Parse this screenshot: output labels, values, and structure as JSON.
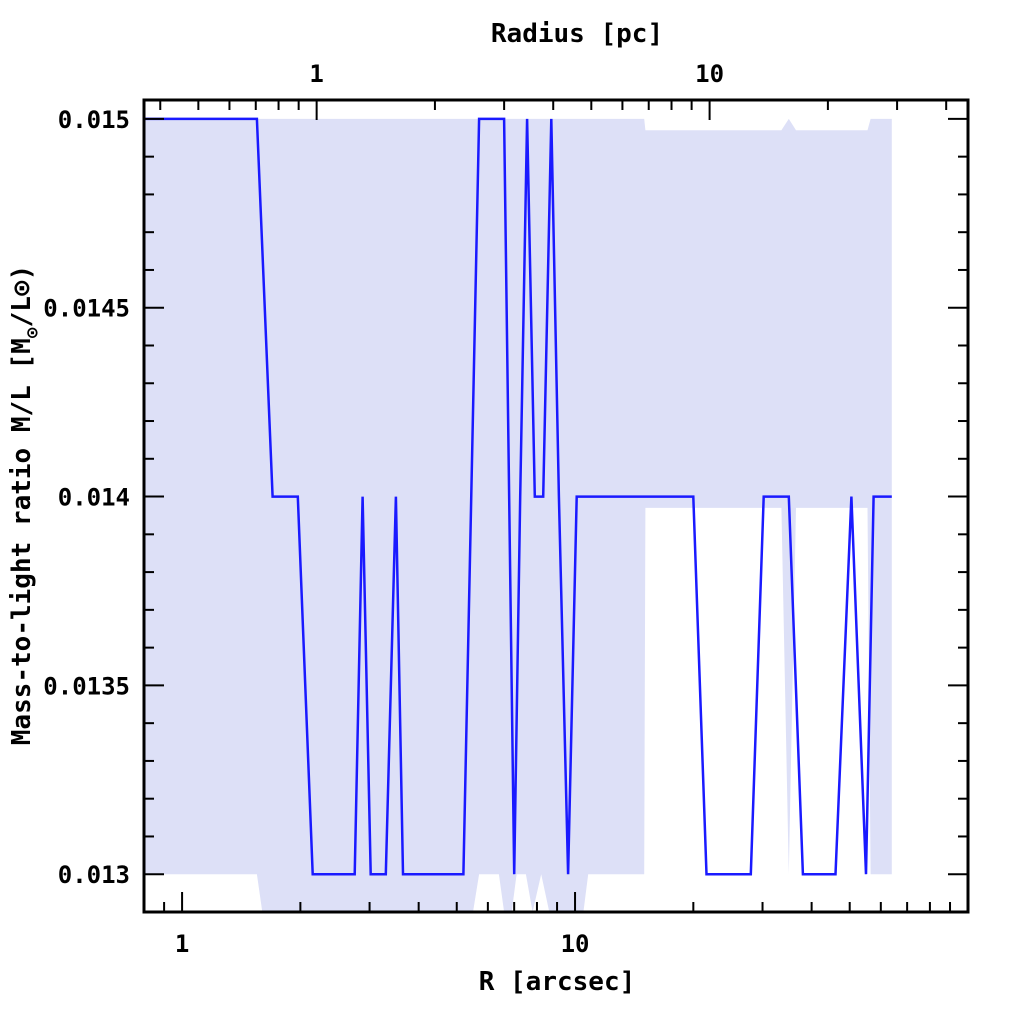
{
  "chart_data": {
    "type": "line",
    "xscale": "log",
    "xlim": [
      0.8,
      100
    ],
    "ylim": [
      0.0129,
      0.01505
    ],
    "xlabel": "R [arcsec]",
    "top_xlabel": "Radius [pc]",
    "ylabel": "Mass-to-light ratio M/L [M",
    "ylabel_sub": "⊙",
    "ylabel_tail": "/L⊙)",
    "x_tick_labels": [
      "1",
      "10"
    ],
    "x_tick_values": [
      1,
      10
    ],
    "top_tick_labels": [
      "1",
      "10"
    ],
    "top_tick_values": [
      2.2,
      22
    ],
    "y_tick_labels": [
      "0.015",
      "0.0145",
      "0.014",
      "0.0135",
      "0.013"
    ],
    "y_tick_values": [
      0.015,
      0.0145,
      0.014,
      0.0135,
      0.013
    ],
    "series": [
      {
        "color": "#1a1aff",
        "x": [
          0.8,
          1.55,
          1.7,
          1.97,
          2.15,
          2.6,
          2.75,
          2.88,
          3.02,
          3.3,
          3.5,
          3.65,
          3.95,
          5.0,
          5.2,
          5.7,
          6.1,
          6.6,
          7.0,
          7.25,
          7.55,
          7.9,
          8.3,
          8.7,
          9.1,
          9.6,
          10.1,
          10.6,
          11.2,
          20,
          21.6,
          28,
          30.2,
          35,
          38,
          46,
          50.5,
          55,
          57.5,
          60,
          64
        ],
        "y": [
          0.015,
          0.015,
          0.014,
          0.014,
          0.013,
          0.013,
          0.013,
          0.014,
          0.013,
          0.013,
          0.014,
          0.013,
          0.013,
          0.013,
          0.013,
          0.015,
          0.015,
          0.015,
          0.013,
          0.014,
          0.015,
          0.014,
          0.014,
          0.015,
          0.014,
          0.013,
          0.014,
          0.014,
          0.014,
          0.014,
          0.013,
          0.013,
          0.014,
          0.014,
          0.013,
          0.013,
          0.014,
          0.013,
          0.014,
          0.014,
          0.014
        ]
      }
    ],
    "band": {
      "color": "#dde0f7",
      "x": [
        0.8,
        1.55,
        1.6,
        2.0,
        5.3,
        5.5,
        5.7,
        6.4,
        6.6,
        6.9,
        7.1,
        7.5,
        7.8,
        8.2,
        8.6,
        9.3,
        9.9,
        10.5,
        10.8,
        11.0,
        13.5,
        15.0,
        15.1,
        33.5,
        35.0,
        36.5,
        55.5,
        56.5,
        61,
        62,
        64
      ],
      "upper": [
        0.015,
        0.015,
        0.015,
        0.015,
        0.015,
        0.015,
        0.015,
        0.015,
        0.015,
        0.015,
        0.015,
        0.015,
        0.015,
        0.015,
        0.015,
        0.015,
        0.015,
        0.015,
        0.015,
        0.015,
        0.015,
        0.015,
        0.01497,
        0.01497,
        0.015,
        0.01497,
        0.01497,
        0.015,
        0.015,
        0.015,
        0.015
      ],
      "lower": [
        0.013,
        0.013,
        0.0129,
        0.0129,
        0.0129,
        0.0129,
        0.013,
        0.013,
        0.0129,
        0.0129,
        0.013,
        0.013,
        0.0129,
        0.013,
        0.0129,
        0.0129,
        0.0129,
        0.0129,
        0.013,
        0.013,
        0.013,
        0.013,
        0.01397,
        0.01397,
        0.013,
        0.01397,
        0.01397,
        0.013,
        0.013,
        0.013,
        0.013
      ]
    }
  }
}
